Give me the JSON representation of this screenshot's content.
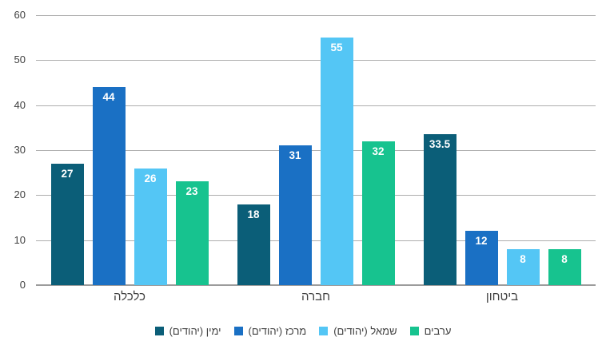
{
  "chart_data": {
    "type": "bar",
    "title": "",
    "categories": [
      "כלכלה",
      "חברה",
      "ביטחון"
    ],
    "series": [
      {
        "name": "ימין (יהודים)",
        "color": "#0B5E78",
        "values": [
          27,
          18,
          33.5
        ]
      },
      {
        "name": "מרכז (יהודים)",
        "color": "#1A70C4",
        "values": [
          44,
          31,
          12
        ]
      },
      {
        "name": "שמאל (יהודים)",
        "color": "#54C6F5",
        "values": [
          26,
          55,
          8
        ]
      },
      {
        "name": "ערבים",
        "color": "#17C38F",
        "values": [
          23,
          32,
          8
        ]
      }
    ],
    "value_labels": [
      [
        "27",
        "18",
        "33.5"
      ],
      [
        "44",
        "31",
        "12"
      ],
      [
        "26",
        "55",
        "8"
      ],
      [
        "23",
        "32",
        "8"
      ]
    ],
    "ylim": [
      0,
      60
    ],
    "yticks": [
      "0",
      "10",
      "20",
      "30",
      "40",
      "50",
      "60"
    ],
    "grid": true,
    "legend_position": "bottom",
    "text_direction": "rtl",
    "colors": {
      "background": "#FFFFFF",
      "axis_text": "#404040",
      "gridline": "#ADADAD",
      "baseline": "#9C9C9C",
      "value_label_text": "#FFFFFF"
    }
  }
}
